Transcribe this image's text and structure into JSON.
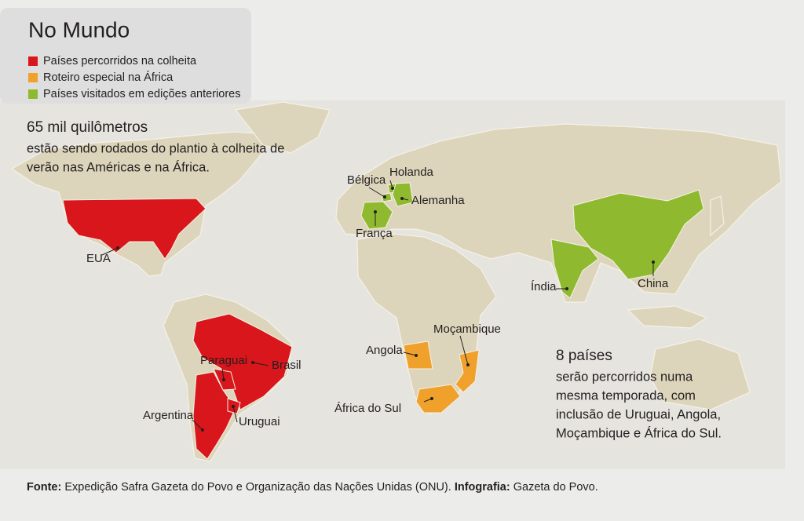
{
  "title": "No Mundo",
  "legend": [
    {
      "label": "Países percorridos na colheita",
      "color": "#d9161c",
      "countries": [
        "EUA",
        "Brasil",
        "Paraguai",
        "Argentina",
        "Uruguai"
      ]
    },
    {
      "label": "Roteiro especial na África",
      "color": "#f0a12b",
      "countries": [
        "Angola",
        "Moçambique",
        "África do Sul"
      ]
    },
    {
      "label": "Países visitados em edições anteriores",
      "color": "#8fba2f",
      "countries": [
        "Bélgica",
        "Holanda",
        "Alemanha",
        "França",
        "Índia",
        "China"
      ]
    }
  ],
  "highlights": [
    {
      "heading": "65 mil quilômetros",
      "lines": [
        "estão sendo rodados do plantio à colheita de",
        "verão nas Américas e na África."
      ]
    },
    {
      "heading": "8 países",
      "lines": [
        "serão percorridos numa",
        "mesma temporada, com",
        "inclusão de Uruguai, Angola,",
        "Moçambique e África do Sul."
      ]
    }
  ],
  "footer": {
    "source_label": "Fonte:",
    "source": "Expedição Safra Gazeta do Povo e Organização das Nações Unidas (ONU).",
    "credit_label": "Infografia:",
    "credit": "Gazeta do Povo."
  }
}
